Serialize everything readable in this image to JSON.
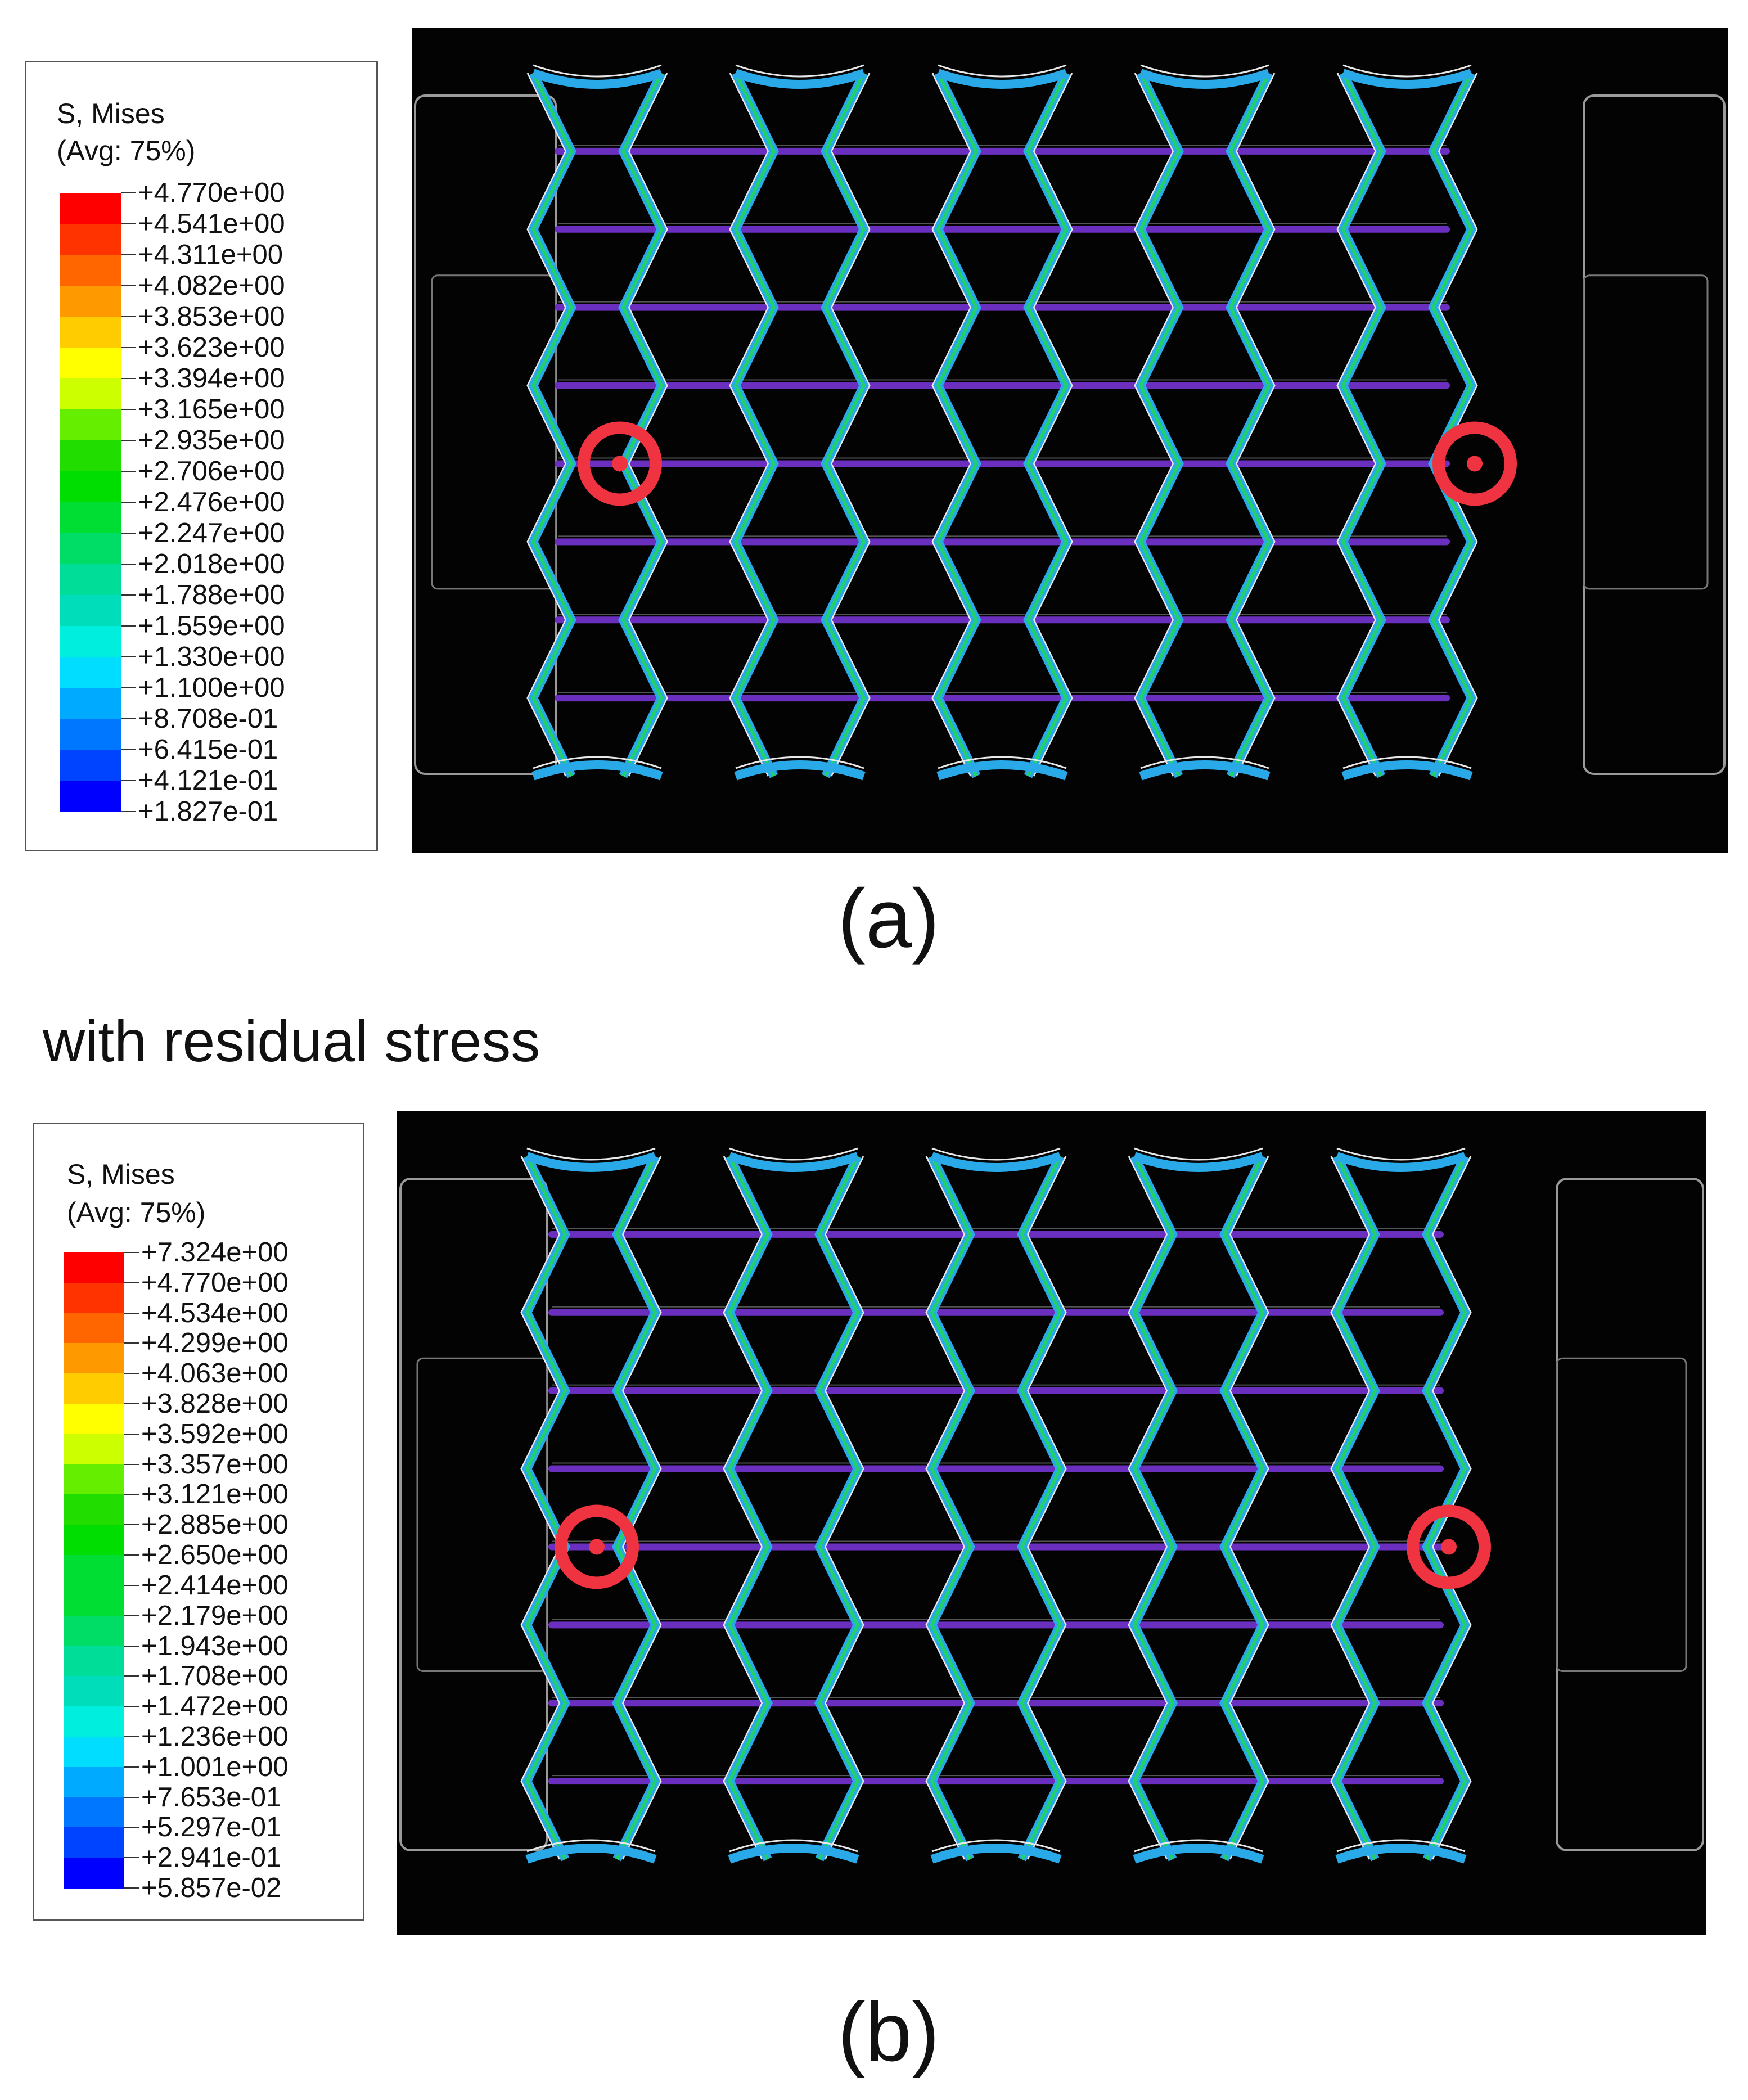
{
  "figure": {
    "panel_a": {
      "caption": "(a)",
      "legend": {
        "title": "S, Mises",
        "subtitle": "(Avg: 75%)",
        "values": [
          "+4.770e+00",
          "+4.541e+00",
          "+4.311e+00",
          "+4.082e+00",
          "+3.853e+00",
          "+3.623e+00",
          "+3.394e+00",
          "+3.165e+00",
          "+2.935e+00",
          "+2.706e+00",
          "+2.476e+00",
          "+2.247e+00",
          "+2.018e+00",
          "+1.788e+00",
          "+1.559e+00",
          "+1.330e+00",
          "+1.100e+00",
          "+8.708e-01",
          "+6.415e-01",
          "+4.121e-01",
          "+1.827e-01"
        ]
      }
    },
    "heading": "with residual stress",
    "panel_b": {
      "caption": "(b)",
      "legend": {
        "title": "S, Mises",
        "subtitle": "(Avg: 75%)",
        "values": [
          "+7.324e+00",
          "+4.770e+00",
          "+4.534e+00",
          "+4.299e+00",
          "+4.063e+00",
          "+3.828e+00",
          "+3.592e+00",
          "+3.357e+00",
          "+3.121e+00",
          "+2.885e+00",
          "+2.650e+00",
          "+2.414e+00",
          "+2.179e+00",
          "+1.943e+00",
          "+1.708e+00",
          "+1.472e+00",
          "+1.236e+00",
          "+1.001e+00",
          "+7.653e-01",
          "+5.297e-01",
          "+2.941e-01",
          "+5.857e-02"
        ]
      }
    },
    "colormap": [
      "#ff0000",
      "#ff3300",
      "#ff6600",
      "#ff9900",
      "#ffcc00",
      "#ffff00",
      "#ccff00",
      "#66ee00",
      "#22dd00",
      "#00dd00",
      "#00dd33",
      "#00dd66",
      "#00dd99",
      "#00ddbb",
      "#00eedd",
      "#00ddff",
      "#00aaff",
      "#0077ff",
      "#0044ff",
      "#0000ff"
    ],
    "colors": {
      "background": "#030303",
      "chevron_outer": "#29a9e8",
      "chevron_inner": "#22d06a",
      "bar": "#6a2fbf",
      "outline": "#e8e8e8",
      "marker": "#ef3340"
    }
  }
}
